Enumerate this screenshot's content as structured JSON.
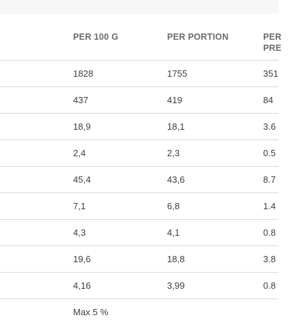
{
  "table": {
    "headers": [
      "PER 100 G",
      "PER PORTION",
      "PER\nPRE"
    ],
    "rows": [
      [
        "1828",
        "1755",
        "351"
      ],
      [
        "437",
        "419",
        "84"
      ],
      [
        "18,9",
        "18,1",
        "3.6"
      ],
      [
        "2,4",
        "2,3",
        "0.5"
      ],
      [
        "45,4",
        "43,6",
        "8.7"
      ],
      [
        "7,1",
        "6,8",
        "1.4"
      ],
      [
        "4,3",
        "4,1",
        "0.8"
      ],
      [
        "19,6",
        "18,8",
        "3.8"
      ],
      [
        "4,16",
        "3,99",
        "0.8"
      ],
      [
        "Max 5 %",
        "",
        ""
      ]
    ]
  }
}
